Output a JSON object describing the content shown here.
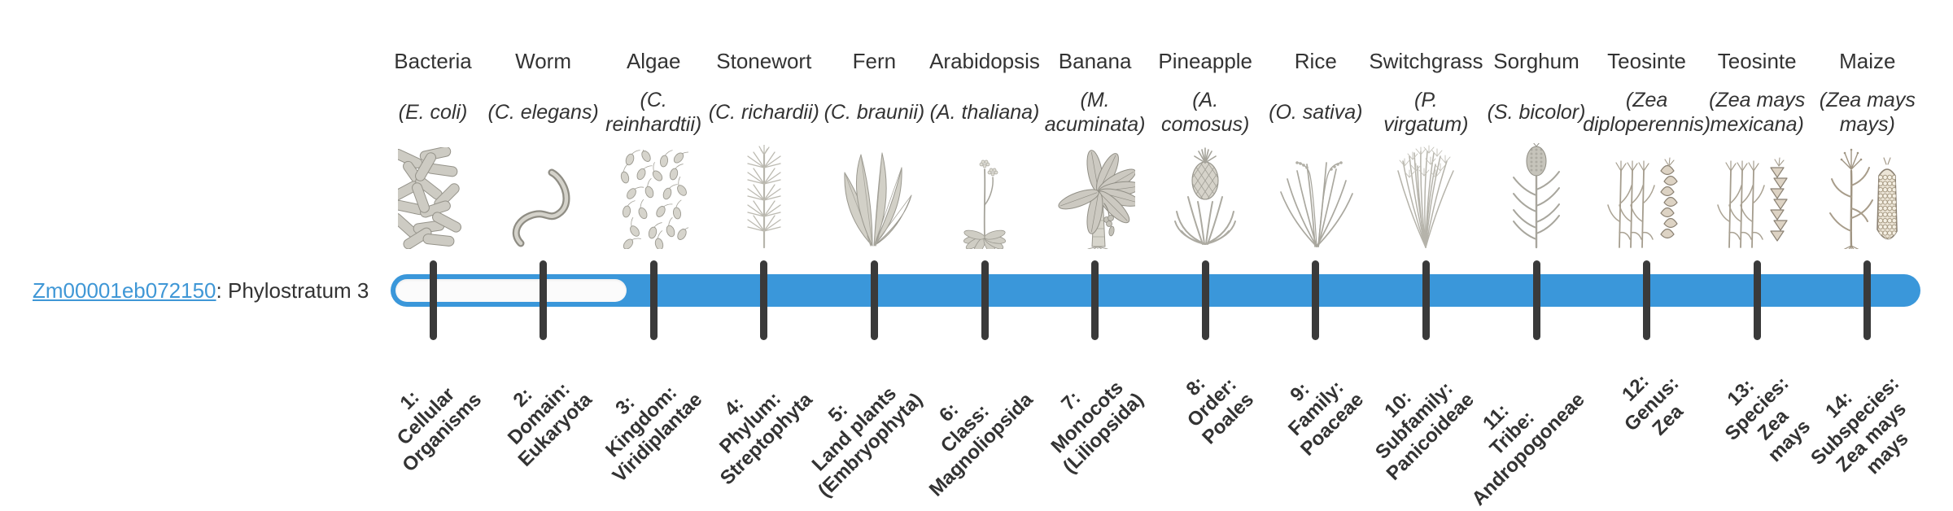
{
  "gene_label": {
    "id": "Zm00001eb072150",
    "rest": ": Phylostratum 3"
  },
  "phylostratum": 3,
  "colors": {
    "bar": "#3a97da",
    "bar_unfilled": "#fbfbfb",
    "tick": "#3a3a3a",
    "link": "#3f97d6",
    "text": "#333333"
  },
  "strata": [
    {
      "number": 1,
      "organism": "Bacteria",
      "latin": "(E. coli)",
      "tick_label": "1:\nCellular\nOrganisms",
      "illustration": "bacteria"
    },
    {
      "number": 2,
      "organism": "Worm",
      "latin": "(C. elegans)",
      "tick_label": "2:\nDomain:\nEukaryota",
      "illustration": "worm"
    },
    {
      "number": 3,
      "organism": "Algae",
      "latin": "(C.\nreinhardtii)",
      "tick_label": "3:\nKingdom:\nViridiplantae",
      "illustration": "algae"
    },
    {
      "number": 4,
      "organism": "Stonewort",
      "latin": "(C. richardii)",
      "tick_label": "4:\nPhylum:\nStreptophyta",
      "illustration": "stonewort"
    },
    {
      "number": 5,
      "organism": "Fern",
      "latin": "(C. braunii)",
      "tick_label": "5:\nLand plants\n(Embryophyta)",
      "illustration": "fern"
    },
    {
      "number": 6,
      "organism": "Arabidopsis",
      "latin": "(A. thaliana)",
      "tick_label": "6:\nClass:\nMagnoliopsida",
      "illustration": "arabidopsis"
    },
    {
      "number": 7,
      "organism": "Banana",
      "latin": "(M.\nacuminata)",
      "tick_label": "7:\nMonocots\n(Liliopsida)",
      "illustration": "banana"
    },
    {
      "number": 8,
      "organism": "Pineapple",
      "latin": "(A.\ncomosus)",
      "tick_label": "8:\nOrder:\nPoales",
      "illustration": "pineapple"
    },
    {
      "number": 9,
      "organism": "Rice",
      "latin": "(O. sativa)",
      "tick_label": "9:\nFamily:\nPoaceae",
      "illustration": "rice"
    },
    {
      "number": 10,
      "organism": "Switchgrass",
      "latin": "(P.\nvirgatum)",
      "tick_label": "10:\nSubfamily:\nPanicoideae",
      "illustration": "switchgrass"
    },
    {
      "number": 11,
      "organism": "Sorghum",
      "latin": "(S. bicolor)",
      "tick_label": "11:\nTribe:\nAndropogoneae",
      "illustration": "sorghum"
    },
    {
      "number": 12,
      "organism": "Teosinte",
      "latin": "(Zea\ndiploperennis)",
      "tick_label": "12:\nGenus:\nZea",
      "illustration": "teosinte"
    },
    {
      "number": 13,
      "organism": "Teosinte",
      "latin": "(Zea mays\nmexicana)",
      "tick_label": "13:\nSpecies:\nZea\nmays",
      "illustration": "teosinte2"
    },
    {
      "number": 14,
      "organism": "Maize",
      "latin": "(Zea mays\nmays)",
      "tick_label": "14:\nSubspecies:\nZea mays\nmays",
      "illustration": "maize"
    }
  ],
  "chart_data": {
    "type": "timeline",
    "title": "Zm00001eb072150: Phylostratum 3",
    "gene": "Zm00001eb072150",
    "phylostratum": 3,
    "n_strata": 14,
    "categories": [
      "1: Cellular Organisms",
      "2: Domain: Eukaryota",
      "3: Kingdom: Viridiplantae",
      "4: Phylum: Streptophyta",
      "5: Land plants (Embryophyta)",
      "6: Class: Magnoliopsida",
      "7: Monocots (Liliopsida)",
      "8: Order: Poales",
      "9: Family: Poaceae",
      "10: Subfamily: Panicoideae",
      "11: Tribe: Andropogoneae",
      "12: Genus: Zea",
      "13: Species: Zea mays",
      "14: Subspecies: Zea mays mays"
    ],
    "representative_organisms": [
      "Bacteria (E. coli)",
      "Worm (C. elegans)",
      "Algae (C. reinhardtii)",
      "Stonewort (C. richardii)",
      "Fern (C. braunii)",
      "Arabidopsis (A. thaliana)",
      "Banana (M. acuminata)",
      "Pineapple (A. comosus)",
      "Rice (O. sativa)",
      "Switchgrass (P. virgatum)",
      "Sorghum (S. bicolor)",
      "Teosinte (Zea diploperennis)",
      "Teosinte (Zea mays mexicana)",
      "Maize (Zea mays mays)"
    ],
    "filled_strata_range": [
      3,
      14
    ],
    "unfilled_strata_range": [
      1,
      2
    ],
    "bar_color": "#3a97da",
    "legend_position": "none",
    "grid": false
  }
}
